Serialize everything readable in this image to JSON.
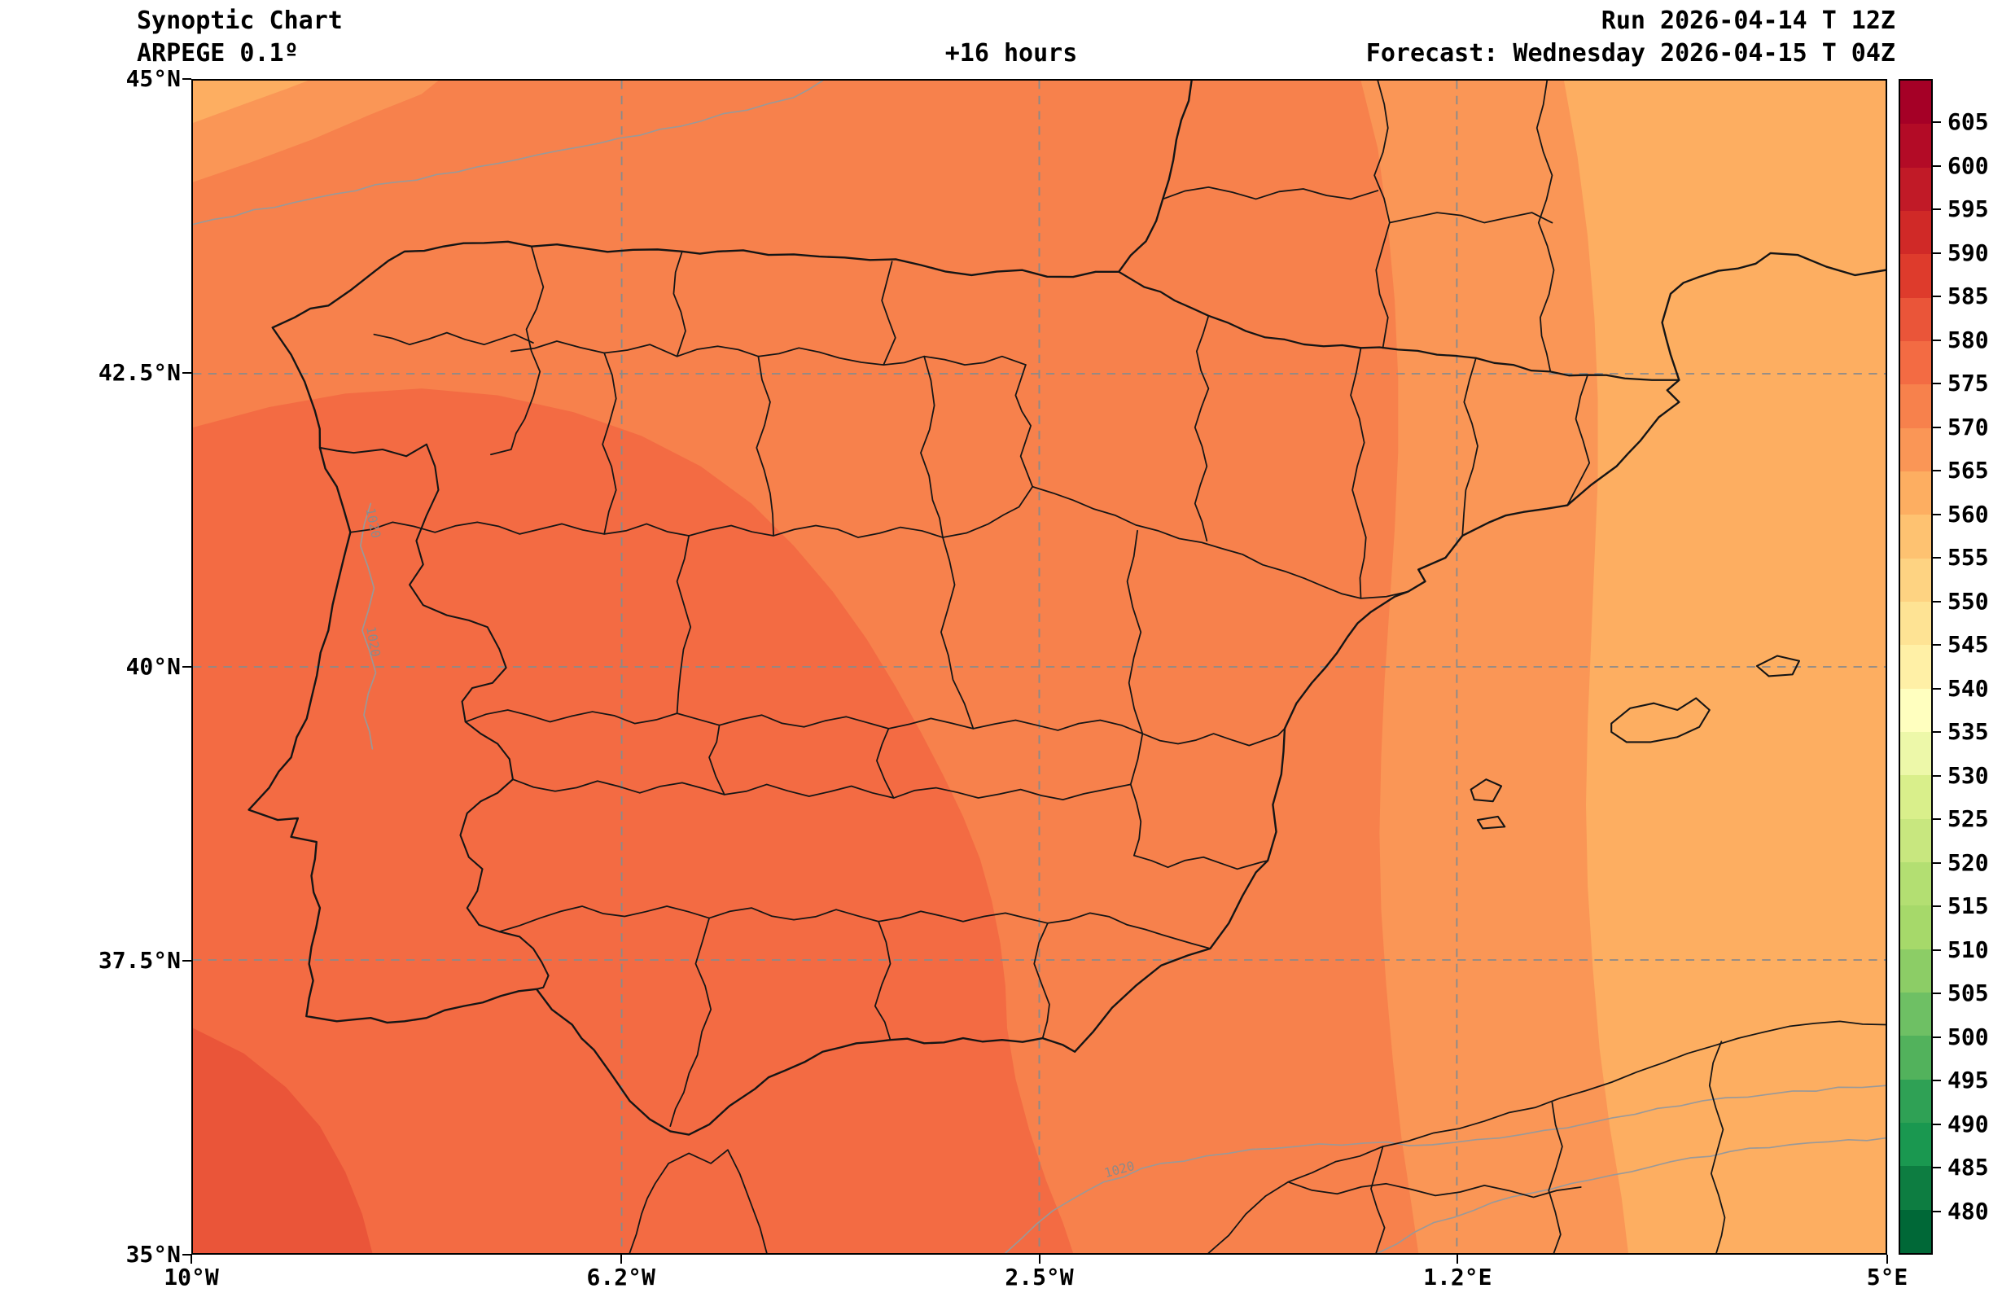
{
  "header": {
    "title": "Synoptic Chart",
    "model": "ARPEGE 0.1º",
    "lead_time": "+16 hours",
    "run": "Run 2026-04-14 T 12Z",
    "forecast": "Forecast: Wednesday 2026-04-15 T 04Z"
  },
  "axes": {
    "x_ticks": [
      "10°W",
      "6.2°W",
      "2.5°W",
      "1.2°E",
      "5°E"
    ],
    "y_ticks": [
      "45°N",
      "42.5°N",
      "40°N",
      "37.5°N",
      "35°N"
    ]
  },
  "chart_data": {
    "type": "heatmap",
    "title": "Synoptic Chart - ARPEGE 0.1º - +16 hours",
    "region": "Iberian Peninsula, Balearic Islands, southern France and north-west Africa with national and province boundaries in black",
    "extent": {
      "lon_min_deg": -10,
      "lon_max_deg": 5,
      "lat_min_deg": 35,
      "lat_max_deg": 45
    },
    "x_tick_labels": [
      "10°W",
      "6.2°W",
      "2.5°W",
      "1.2°E",
      "5°E"
    ],
    "y_tick_labels": [
      "45°N",
      "42.5°N",
      "40°N",
      "37.5°N",
      "35°N"
    ],
    "grid": true,
    "colorbar": {
      "position": "right",
      "tick_min": 480,
      "tick_max": 605,
      "tick_step": 5,
      "ticks": [
        605,
        600,
        595,
        590,
        585,
        580,
        575,
        570,
        565,
        560,
        555,
        550,
        545,
        540,
        535,
        530,
        525,
        520,
        515,
        510,
        505,
        500,
        495,
        490,
        485,
        480
      ],
      "colors": [
        "#a50026",
        "#b30b26",
        "#c11a27",
        "#d02927",
        "#de3b2c",
        "#ea5539",
        "#f36b43",
        "#f7814c",
        "#fa9656",
        "#fdae61",
        "#fec271",
        "#fed382",
        "#fee394",
        "#fff0a6",
        "#ffffbf",
        "#edf8a9",
        "#d9ef8b",
        "#c8e77f",
        "#b3df72",
        "#a6d96a",
        "#8ccd66",
        "#6ec064",
        "#52b25c",
        "#2fa155",
        "#1a9850",
        "#0d7d41",
        "#006837"
      ]
    },
    "filled_bands_visible": [
      {
        "value_range": "580-585",
        "color": "#ea5539",
        "location": "far south-west corner (Atlantic)"
      },
      {
        "value_range": "575-580",
        "color": "#f36b43",
        "location": "western and central Iberia and south-west Atlantic"
      },
      {
        "value_range": "570-575",
        "color": "#f7814c",
        "location": "base shade over most of the peninsula and northern strip"
      },
      {
        "value_range": "565-570",
        "color": "#fa9656",
        "location": "eastern Spain and western Mediterranean; also north-west corner"
      },
      {
        "value_range": "560-565",
        "color": "#fdae61",
        "location": "far eastern Mediterranean / Balearic Sea; extreme north-west corner"
      }
    ],
    "isobar_labels": [
      "1020"
    ]
  }
}
